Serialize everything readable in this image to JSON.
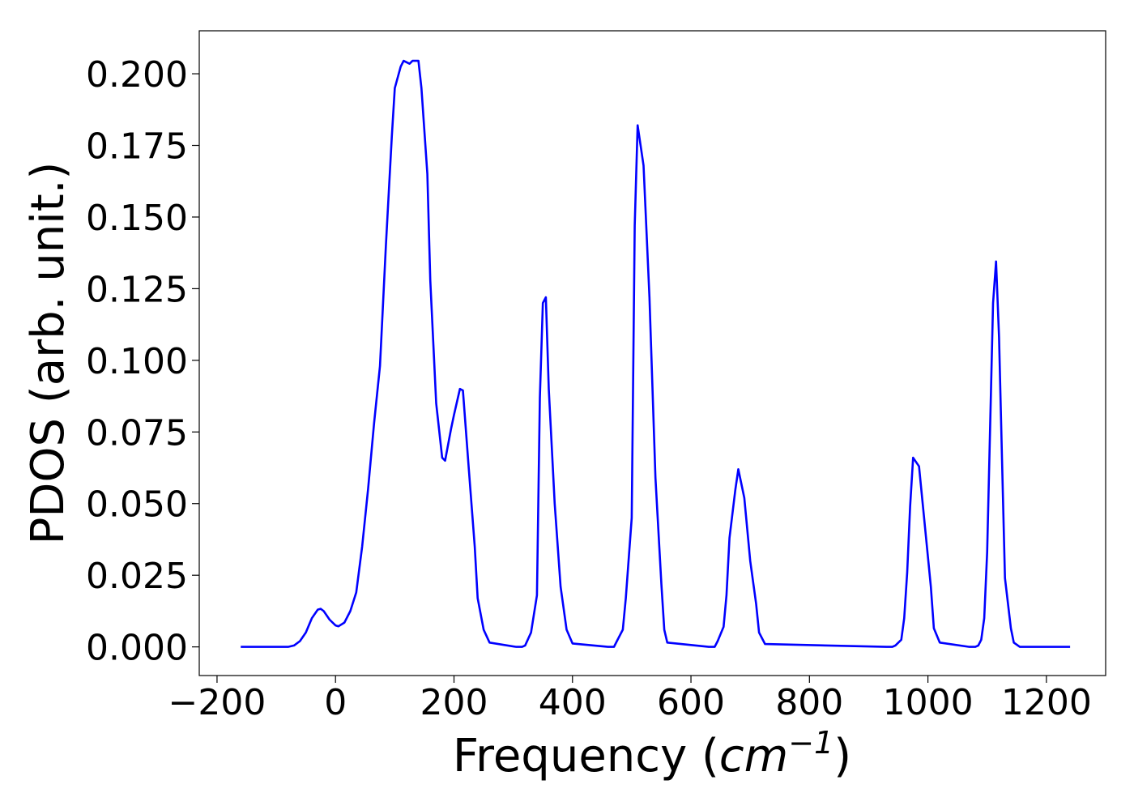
{
  "chart_data": {
    "type": "line",
    "title": "",
    "xlabel": {
      "prefix": "Frequency (",
      "math": "cm",
      "superscript": "−1",
      "suffix": ")"
    },
    "ylabel": "PDOS (arb. unit.)",
    "xlim": [
      -230,
      1300
    ],
    "ylim": [
      -0.01,
      0.215
    ],
    "x_ticks": [
      -200,
      0,
      200,
      400,
      600,
      800,
      1000,
      1200
    ],
    "x_tick_labels": [
      "−200",
      "0",
      "200",
      "400",
      "600",
      "800",
      "1000",
      "1200"
    ],
    "y_ticks": [
      0.0,
      0.025,
      0.05,
      0.075,
      0.1,
      0.125,
      0.15,
      0.175,
      0.2
    ],
    "y_tick_labels": [
      "0.000",
      "0.025",
      "0.050",
      "0.075",
      "0.100",
      "0.125",
      "0.150",
      "0.175",
      "0.200"
    ],
    "grid": false,
    "legend": "none",
    "series": [
      {
        "color": "#0000ff",
        "x": [
          -160,
          -80,
          -70,
          -60,
          -50,
          -40,
          -30,
          -25,
          -20,
          -10,
          0,
          5,
          15,
          25,
          35,
          45,
          55,
          65,
          75,
          85,
          95,
          100,
          110,
          115,
          125,
          130,
          140,
          145,
          155,
          160,
          170,
          180,
          185,
          195,
          200,
          210,
          215,
          225,
          235,
          240,
          250,
          260,
          305,
          315,
          320,
          330,
          340,
          345,
          350,
          355,
          360,
          370,
          380,
          390,
          400,
          460,
          470,
          475,
          485,
          490,
          500,
          505,
          510,
          520,
          530,
          540,
          550,
          555,
          560,
          630,
          640,
          645,
          655,
          660,
          665,
          675,
          680,
          690,
          700,
          710,
          715,
          725,
          930,
          940,
          945,
          955,
          960,
          965,
          970,
          975,
          985,
          995,
          1005,
          1010,
          1020,
          1070,
          1080,
          1085,
          1090,
          1095,
          1100,
          1105,
          1110,
          1115,
          1120,
          1125,
          1130,
          1140,
          1145,
          1155,
          1160,
          1240
        ],
        "values": [
          0.0,
          0.0,
          0.0005,
          0.002,
          0.005,
          0.01,
          0.013,
          0.0133,
          0.0125,
          0.0095,
          0.0075,
          0.0072,
          0.0085,
          0.0125,
          0.019,
          0.035,
          0.055,
          0.078,
          0.098,
          0.14,
          0.178,
          0.195,
          0.2025,
          0.2045,
          0.2035,
          0.2045,
          0.2045,
          0.195,
          0.165,
          0.128,
          0.085,
          0.066,
          0.065,
          0.076,
          0.081,
          0.09,
          0.0895,
          0.062,
          0.035,
          0.017,
          0.006,
          0.0015,
          0.0,
          0.0,
          0.0005,
          0.005,
          0.018,
          0.087,
          0.12,
          0.122,
          0.09,
          0.05,
          0.021,
          0.006,
          0.0012,
          0.0,
          0.0,
          0.002,
          0.006,
          0.017,
          0.045,
          0.147,
          0.182,
          0.168,
          0.122,
          0.059,
          0.022,
          0.006,
          0.0015,
          0.0,
          0.0,
          0.002,
          0.007,
          0.018,
          0.038,
          0.055,
          0.062,
          0.052,
          0.03,
          0.015,
          0.005,
          0.001,
          0.0,
          0.0,
          0.0005,
          0.0025,
          0.01,
          0.026,
          0.049,
          0.066,
          0.063,
          0.042,
          0.021,
          0.0065,
          0.0015,
          0.0,
          0.0,
          0.0005,
          0.0025,
          0.01,
          0.033,
          0.077,
          0.12,
          0.1345,
          0.108,
          0.066,
          0.024,
          0.0065,
          0.0015,
          0.0,
          0.0,
          0.0
        ]
      }
    ]
  }
}
